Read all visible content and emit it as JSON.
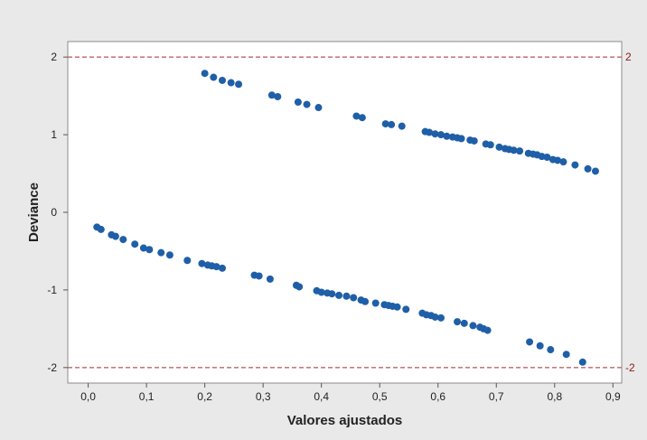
{
  "chart_data": {
    "type": "scatter",
    "title": "",
    "xlabel": "Valores ajustados",
    "ylabel": "Deviance",
    "xlim": [
      -0.035,
      0.915
    ],
    "ylim": [
      -2.2,
      2.2
    ],
    "x_ticks": [
      0.0,
      0.1,
      0.2,
      0.3,
      0.4,
      0.5,
      0.6,
      0.7,
      0.8,
      0.9
    ],
    "x_tick_labels": [
      "0,0",
      "0,1",
      "0,2",
      "0,3",
      "0,4",
      "0,5",
      "0,6",
      "0,7",
      "0,8",
      "0,9"
    ],
    "y_ticks": [
      -2,
      -1,
      0,
      1,
      2
    ],
    "y_tick_labels": [
      "-2",
      "-1",
      "0",
      "1",
      "2"
    ],
    "grid": false,
    "marker_color": "#1f5fa8",
    "reference_line_color": "#a52a2a",
    "reference_lines": [
      {
        "y": 2,
        "label": "2"
      },
      {
        "y": -2,
        "label": "-2"
      }
    ],
    "series": [
      {
        "name": "",
        "points": [
          [
            0.2,
            1.79
          ],
          [
            0.215,
            1.74
          ],
          [
            0.23,
            1.7
          ],
          [
            0.245,
            1.67
          ],
          [
            0.258,
            1.65
          ],
          [
            0.315,
            1.51
          ],
          [
            0.325,
            1.49
          ],
          [
            0.36,
            1.42
          ],
          [
            0.375,
            1.39
          ],
          [
            0.395,
            1.35
          ],
          [
            0.46,
            1.24
          ],
          [
            0.47,
            1.22
          ],
          [
            0.51,
            1.14
          ],
          [
            0.52,
            1.13
          ],
          [
            0.538,
            1.11
          ],
          [
            0.578,
            1.04
          ],
          [
            0.585,
            1.03
          ],
          [
            0.595,
            1.01
          ],
          [
            0.605,
            1.0
          ],
          [
            0.615,
            0.98
          ],
          [
            0.625,
            0.97
          ],
          [
            0.633,
            0.96
          ],
          [
            0.64,
            0.95
          ],
          [
            0.655,
            0.93
          ],
          [
            0.662,
            0.92
          ],
          [
            0.682,
            0.88
          ],
          [
            0.69,
            0.87
          ],
          [
            0.705,
            0.84
          ],
          [
            0.715,
            0.82
          ],
          [
            0.722,
            0.81
          ],
          [
            0.73,
            0.8
          ],
          [
            0.74,
            0.79
          ],
          [
            0.755,
            0.76
          ],
          [
            0.763,
            0.75
          ],
          [
            0.77,
            0.74
          ],
          [
            0.778,
            0.72
          ],
          [
            0.787,
            0.71
          ],
          [
            0.797,
            0.68
          ],
          [
            0.805,
            0.67
          ],
          [
            0.815,
            0.65
          ],
          [
            0.835,
            0.61
          ],
          [
            0.857,
            0.56
          ],
          [
            0.87,
            0.53
          ]
        ]
      },
      {
        "name": "",
        "points": [
          [
            0.015,
            -0.19
          ],
          [
            0.022,
            -0.22
          ],
          [
            0.04,
            -0.29
          ],
          [
            0.047,
            -0.31
          ],
          [
            0.06,
            -0.35
          ],
          [
            0.08,
            -0.41
          ],
          [
            0.095,
            -0.46
          ],
          [
            0.105,
            -0.48
          ],
          [
            0.125,
            -0.52
          ],
          [
            0.14,
            -0.55
          ],
          [
            0.17,
            -0.62
          ],
          [
            0.195,
            -0.66
          ],
          [
            0.205,
            -0.68
          ],
          [
            0.212,
            -0.69
          ],
          [
            0.22,
            -0.7
          ],
          [
            0.23,
            -0.72
          ],
          [
            0.285,
            -0.81
          ],
          [
            0.293,
            -0.82
          ],
          [
            0.312,
            -0.86
          ],
          [
            0.357,
            -0.94
          ],
          [
            0.362,
            -0.96
          ],
          [
            0.392,
            -1.01
          ],
          [
            0.4,
            -1.03
          ],
          [
            0.41,
            -1.04
          ],
          [
            0.418,
            -1.05
          ],
          [
            0.43,
            -1.07
          ],
          [
            0.443,
            -1.08
          ],
          [
            0.455,
            -1.1
          ],
          [
            0.468,
            -1.13
          ],
          [
            0.475,
            -1.15
          ],
          [
            0.493,
            -1.17
          ],
          [
            0.508,
            -1.19
          ],
          [
            0.515,
            -1.2
          ],
          [
            0.522,
            -1.21
          ],
          [
            0.53,
            -1.22
          ],
          [
            0.545,
            -1.25
          ],
          [
            0.573,
            -1.3
          ],
          [
            0.58,
            -1.32
          ],
          [
            0.588,
            -1.33
          ],
          [
            0.595,
            -1.35
          ],
          [
            0.605,
            -1.36
          ],
          [
            0.633,
            -1.41
          ],
          [
            0.645,
            -1.43
          ],
          [
            0.66,
            -1.46
          ],
          [
            0.672,
            -1.48
          ],
          [
            0.678,
            -1.5
          ],
          [
            0.685,
            -1.52
          ],
          [
            0.757,
            -1.67
          ],
          [
            0.775,
            -1.72
          ],
          [
            0.793,
            -1.77
          ],
          [
            0.82,
            -1.83
          ],
          [
            0.848,
            -1.93
          ]
        ]
      }
    ]
  }
}
